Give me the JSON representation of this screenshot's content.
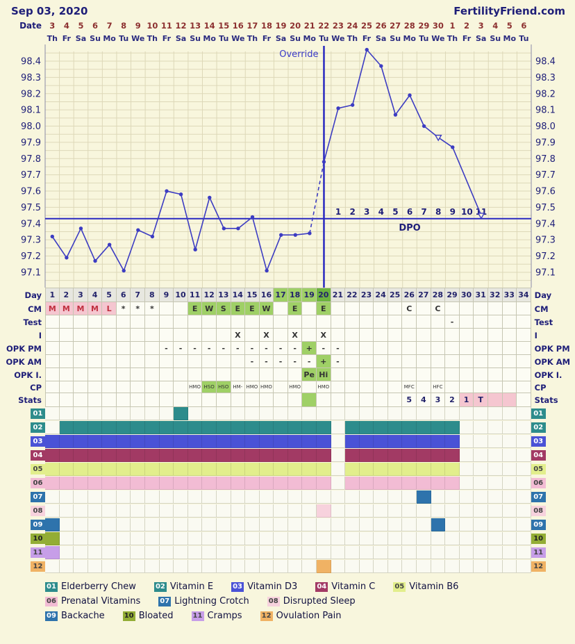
{
  "header": {
    "date": "Sep 03, 2020",
    "site": "FertilityFriend.com"
  },
  "colors": {
    "page_bg": "#f8f6dd",
    "navy_text": "#1e1e78",
    "date_red": "#8c3030",
    "temp_line_blue": "#3c3cc2",
    "signal_line_blue": "#2828c0",
    "grid": "#ddd8b8",
    "fertile_green": "#9fd066",
    "ovulation_green": "#6db33f",
    "menses_pink": "#f5c6d0"
  },
  "calendar": {
    "date_label": "Date",
    "dates": [
      "3",
      "4",
      "5",
      "6",
      "7",
      "8",
      "9",
      "10",
      "11",
      "12",
      "13",
      "14",
      "15",
      "16",
      "17",
      "18",
      "19",
      "20",
      "21",
      "22",
      "23",
      "24",
      "25",
      "26",
      "27",
      "28",
      "29",
      "30",
      "1",
      "2",
      "3",
      "4",
      "5",
      "6"
    ],
    "dows": [
      "Th",
      "Fr",
      "Sa",
      "Su",
      "Mo",
      "Tu",
      "We",
      "Th",
      "Fr",
      "Sa",
      "Su",
      "Mo",
      "Tu",
      "We",
      "Th",
      "Fr",
      "Sa",
      "Su",
      "Mo",
      "Tu",
      "We",
      "Th",
      "Fr",
      "Sa",
      "Su",
      "Mo",
      "Tu",
      "We",
      "Th",
      "Fr",
      "Sa",
      "Su",
      "Mo",
      "Tu"
    ]
  },
  "chart_data": {
    "type": "line",
    "title": "",
    "xlabel": "",
    "ylabel": "",
    "ylim": [
      97.05,
      98.5
    ],
    "yticks": [
      "98.4",
      "98.3",
      "98.2",
      "98.1",
      "98.0",
      "97.9",
      "97.8",
      "97.7",
      "97.6",
      "97.5",
      "97.4",
      "97.3",
      "97.2",
      "97.1"
    ],
    "temps": [
      97.32,
      97.19,
      97.37,
      97.17,
      97.27,
      97.11,
      97.36,
      97.32,
      97.6,
      97.58,
      97.24,
      97.56,
      97.37,
      97.37,
      97.44,
      97.11,
      97.33,
      97.33,
      97.34,
      97.78,
      98.11,
      98.13,
      98.47,
      98.37,
      98.07,
      98.19,
      98.0,
      97.93,
      97.87,
      null,
      97.45,
      null,
      null,
      null
    ],
    "discarded_days": [
      28,
      31
    ],
    "dashed_segments": [
      [
        19,
        20
      ]
    ],
    "coverline": 97.43,
    "ovulation_day": 20,
    "override_label": "Override",
    "dpo_label": "DPO",
    "dpo_numbers": [
      "1",
      "2",
      "3",
      "4",
      "5",
      "6",
      "7",
      "8",
      "9",
      "10",
      "11"
    ]
  },
  "table": {
    "rows": [
      {
        "name": "day",
        "label": "Day",
        "cells": [
          "1|g",
          "2|g",
          "3|g",
          "4|g",
          "5|g",
          "6|g",
          "7|g",
          "8|g",
          "9|g",
          "10|g",
          "11|g",
          "12|g",
          "13|g",
          "14|g",
          "15|g",
          "16|g",
          "17|f",
          "18|f",
          "19|f",
          "20|o",
          "21|g",
          "22|g",
          "23|g",
          "24|g",
          "25|g",
          "26|g",
          "27|g",
          "28|g",
          "29|g",
          "30|g",
          "31|g",
          "32|g",
          "33|g",
          "34|g"
        ]
      },
      {
        "name": "cm",
        "label": "CM",
        "cells": [
          "M|m",
          "M|m",
          "M|m",
          "M|m",
          "L|m",
          "*",
          "*",
          "*",
          "",
          "",
          "E|f",
          "W|f",
          "S|f",
          "E|f",
          "E|f",
          "W|f",
          "",
          "E|f",
          "",
          "E|f",
          "",
          "",
          "",
          "",
          "",
          "C",
          "",
          "C",
          "",
          "",
          "",
          "",
          "",
          ""
        ]
      },
      {
        "name": "test",
        "label": "Test",
        "cells": [
          "",
          "",
          "",
          "",
          "",
          "",
          "",
          "",
          "",
          "",
          "",
          "",
          "",
          "",
          "",
          "",
          "",
          "",
          "",
          "",
          "",
          "",
          "",
          "",
          "",
          "",
          "",
          "",
          "-",
          "",
          "",
          "",
          "",
          ""
        ]
      },
      {
        "name": "intercourse",
        "label": "I",
        "cells": [
          "",
          "",
          "",
          "",
          "",
          "",
          "",
          "",
          "",
          "",
          "",
          "",
          "",
          "X",
          "",
          "X",
          "",
          "X",
          "",
          "X",
          "",
          "",
          "",
          "",
          "",
          "",
          "",
          "",
          "",
          "",
          "",
          "",
          "",
          ""
        ]
      },
      {
        "name": "opk-pm",
        "label": "OPK PM",
        "cells": [
          "",
          "",
          "",
          "",
          "",
          "",
          "",
          "",
          "-",
          "-",
          "-",
          "-",
          "-",
          "-",
          "-",
          "-",
          "-",
          "-",
          "+|f",
          "-",
          "-",
          "",
          "",
          "",
          "",
          "",
          "",
          "",
          "",
          "",
          "",
          "",
          "",
          ""
        ]
      },
      {
        "name": "opk-am",
        "label": "OPK AM",
        "cells": [
          "",
          "",
          "",
          "",
          "",
          "",
          "",
          "",
          "",
          "",
          "",
          "",
          "",
          "",
          "-",
          "-",
          "-",
          "-",
          "-",
          "+|f",
          "-",
          "",
          "",
          "",
          "",
          "",
          "",
          "",
          "",
          "",
          "",
          "",
          "",
          ""
        ]
      },
      {
        "name": "opk-monitor",
        "label": "OPK I.",
        "cells": [
          "",
          "",
          "",
          "",
          "",
          "",
          "",
          "",
          "",
          "",
          "",
          "",
          "",
          "",
          "",
          "",
          "",
          "",
          "Pe|f",
          "Hi|f",
          "",
          "",
          "",
          "",
          "",
          "",
          "",
          "",
          "",
          "",
          "",
          "",
          "",
          ""
        ]
      },
      {
        "name": "cp",
        "label": "CP",
        "cells": [
          "",
          "",
          "",
          "",
          "",
          "",
          "",
          "",
          "",
          "",
          "HMO|c",
          "HSO|cf",
          "HSO|cf",
          "HM-|c",
          "HMO|c",
          "HMO|c",
          "",
          "HMO|c",
          "",
          "HMO|c",
          "",
          "",
          "",
          "",
          "",
          "MFC|c",
          "",
          "HFC|c",
          "",
          "",
          "",
          "",
          "",
          ""
        ]
      },
      {
        "name": "stats",
        "label": "Stats",
        "cells": [
          "",
          "",
          "",
          "",
          "",
          "",
          "",
          "",
          "",
          "",
          "",
          "",
          "",
          "",
          "",
          "",
          "",
          "",
          "|f",
          "",
          "",
          "",
          "",
          "",
          "",
          "5",
          "4",
          "3",
          "2",
          "1|p",
          "T|p",
          "|p",
          "|p",
          ""
        ]
      }
    ]
  },
  "symptoms": {
    "rows": [
      {
        "num": "01",
        "color": "#2d8c8c",
        "text": "#ffffff",
        "ranges": [
          [
            10,
            10
          ]
        ]
      },
      {
        "num": "02",
        "color": "#2d8c8c",
        "text": "#ffffff",
        "ranges": [
          [
            2,
            20
          ],
          [
            22,
            29
          ]
        ]
      },
      {
        "num": "03",
        "color": "#4a52d6",
        "text": "#ffffff",
        "ranges": [
          [
            1,
            20
          ],
          [
            22,
            29
          ]
        ]
      },
      {
        "num": "04",
        "color": "#a23a64",
        "text": "#ffffff",
        "ranges": [
          [
            1,
            20
          ],
          [
            22,
            29
          ]
        ]
      },
      {
        "num": "05",
        "color": "#e2ee8c",
        "text": "#444444",
        "ranges": [
          [
            1,
            20
          ],
          [
            22,
            29
          ]
        ]
      },
      {
        "num": "06",
        "color": "#f2bcd4",
        "text": "#444444",
        "ranges": [
          [
            1,
            20
          ],
          [
            22,
            29
          ]
        ]
      },
      {
        "num": "07",
        "color": "#2e73ac",
        "text": "#ffffff",
        "ranges": [
          [
            27,
            27
          ]
        ]
      },
      {
        "num": "08",
        "color": "#f7d2dd",
        "text": "#444444",
        "ranges": [
          [
            20,
            20
          ]
        ]
      },
      {
        "num": "09",
        "color": "#2e73ac",
        "text": "#ffffff",
        "ranges": [
          [
            1,
            1
          ],
          [
            28,
            28
          ]
        ]
      },
      {
        "num": "10",
        "color": "#93ad35",
        "text": "#222222",
        "ranges": [
          [
            1,
            1
          ]
        ]
      },
      {
        "num": "11",
        "color": "#c79ee8",
        "text": "#444444",
        "ranges": [
          [
            1,
            1
          ]
        ]
      },
      {
        "num": "12",
        "color": "#f0b264",
        "text": "#444444",
        "ranges": [
          [
            20,
            20
          ]
        ]
      }
    ]
  },
  "legend": {
    "lines": [
      [
        {
          "num": "01",
          "label": "Elderberry Chew"
        },
        {
          "num": "02",
          "label": "Vitamin E"
        },
        {
          "num": "03",
          "label": "Vitamin D3"
        },
        {
          "num": "04",
          "label": "Vitamin C"
        },
        {
          "num": "05",
          "label": "Vitamin B6"
        }
      ],
      [
        {
          "num": "06",
          "label": "Prenatal Vitamins"
        },
        {
          "num": "07",
          "label": "Lightning Crotch"
        },
        {
          "num": "08",
          "label": "Disrupted Sleep"
        }
      ],
      [
        {
          "num": "09",
          "label": "Backache"
        },
        {
          "num": "10",
          "label": "Bloated"
        },
        {
          "num": "11",
          "label": "Cramps"
        },
        {
          "num": "12",
          "label": "Ovulation Pain"
        }
      ]
    ]
  }
}
